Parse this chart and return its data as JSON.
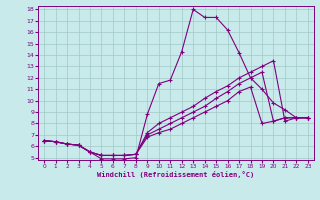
{
  "xlabel": "Windchill (Refroidissement éolien,°C)",
  "bg_color": "#c8eaea",
  "line_color": "#800080",
  "grid_color": "#a0c8c8",
  "xlim": [
    -0.5,
    23.5
  ],
  "ylim": [
    4.8,
    18.3
  ],
  "xticks": [
    0,
    1,
    2,
    3,
    4,
    5,
    6,
    7,
    8,
    9,
    10,
    11,
    12,
    13,
    14,
    15,
    16,
    17,
    18,
    19,
    20,
    21,
    22,
    23
  ],
  "yticks": [
    5,
    6,
    7,
    8,
    9,
    10,
    11,
    12,
    13,
    14,
    15,
    16,
    17,
    18
  ],
  "series": [
    [
      6.5,
      6.4,
      6.2,
      6.1,
      5.5,
      4.9,
      4.9,
      4.9,
      5.0,
      8.8,
      11.5,
      11.8,
      14.3,
      18.0,
      17.3,
      17.3,
      16.2,
      14.2,
      12.0,
      11.0,
      9.8,
      9.2,
      8.5,
      8.5
    ],
    [
      6.5,
      6.4,
      6.2,
      6.1,
      5.5,
      5.2,
      5.2,
      5.2,
      5.3,
      7.2,
      8.0,
      8.5,
      9.0,
      9.5,
      10.2,
      10.8,
      11.3,
      12.0,
      12.5,
      13.0,
      13.5,
      8.2,
      8.5,
      8.5
    ],
    [
      6.5,
      6.4,
      6.2,
      6.1,
      5.5,
      5.2,
      5.2,
      5.2,
      5.3,
      7.0,
      7.5,
      8.0,
      8.5,
      9.0,
      9.5,
      10.2,
      10.8,
      11.5,
      12.0,
      12.5,
      8.2,
      8.5,
      8.5,
      8.5
    ],
    [
      6.5,
      6.4,
      6.2,
      6.1,
      5.5,
      5.2,
      5.2,
      5.2,
      5.3,
      6.8,
      7.2,
      7.5,
      8.0,
      8.5,
      9.0,
      9.5,
      10.0,
      10.8,
      11.2,
      8.0,
      8.2,
      8.5,
      8.5,
      8.5
    ]
  ]
}
